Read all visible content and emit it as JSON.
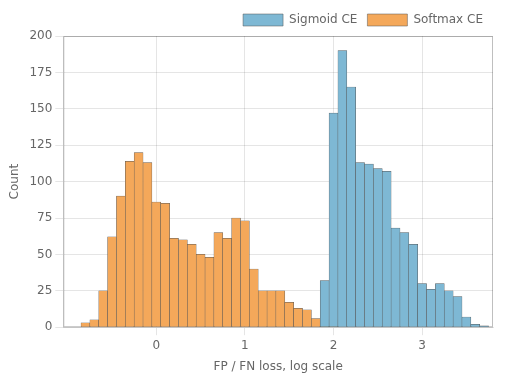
{
  "chart_data": {
    "type": "histogram",
    "xlabel": "FP / FN loss, log scale",
    "ylabel": "Count",
    "series": [
      {
        "name": "Sigmoid CE",
        "color": "#7EB8D4",
        "bins": [
          1.85,
          1.95,
          2.05,
          2.15,
          2.25,
          2.35,
          2.45,
          2.55,
          2.65,
          2.75,
          2.85,
          2.95,
          3.05,
          3.15,
          3.25,
          3.35,
          3.45,
          3.55,
          3.65,
          3.75
        ],
        "values": [
          32,
          147,
          190,
          165,
          113,
          112,
          109,
          107,
          68,
          65,
          57,
          30,
          26,
          30,
          25,
          21,
          7,
          2,
          1
        ]
      },
      {
        "name": "Softmax CE",
        "color": "#F4A85A",
        "bins": [
          -0.85,
          -0.75,
          -0.65,
          -0.55,
          -0.45,
          -0.35,
          -0.25,
          -0.15,
          -0.05,
          0.05,
          0.15,
          0.25,
          0.35,
          0.45,
          0.55,
          0.65,
          0.75,
          0.85,
          0.95,
          1.05,
          1.15,
          1.25,
          1.35,
          1.45,
          1.55,
          1.65,
          1.75,
          1.85,
          1.95,
          2.05
        ],
        "values": [
          3,
          5,
          25,
          62,
          90,
          114,
          120,
          113,
          86,
          85,
          61,
          60,
          57,
          50,
          48,
          65,
          61,
          75,
          73,
          40,
          25,
          25,
          25,
          17,
          13,
          12,
          6,
          5,
          5
        ]
      }
    ],
    "xlim": [
      -1.05,
      3.8
    ],
    "xticks": [
      0,
      1,
      2,
      3
    ],
    "ylim": [
      0,
      200
    ],
    "yticks": [
      0,
      25,
      50,
      75,
      100,
      125,
      150,
      175,
      200
    ],
    "grid": true,
    "legend": "upper right"
  }
}
